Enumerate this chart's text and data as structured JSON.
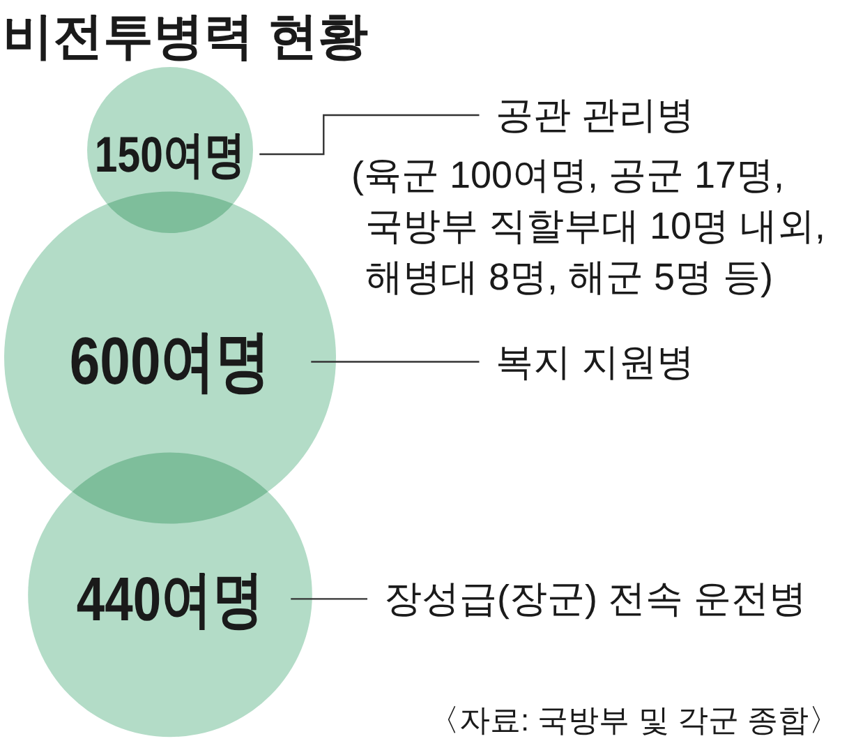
{
  "chart_data": {
    "type": "other",
    "title": "비전투병력 현황",
    "categories": [
      "공관 관리병",
      "복지 지원병",
      "장성급(장군) 전속 운전병"
    ],
    "values": [
      150,
      600,
      440
    ],
    "value_labels": [
      "150여명",
      "600여명",
      "440여명"
    ],
    "color": "#b3dcc7",
    "annotations": [
      "(육군 100여명, 공군 17명,\n국방부 직할부대 10명 내외,\n해병대 8명, 해군 5명 등)",
      "〈자료: 국방부 및 각군 종합〉"
    ]
  }
}
